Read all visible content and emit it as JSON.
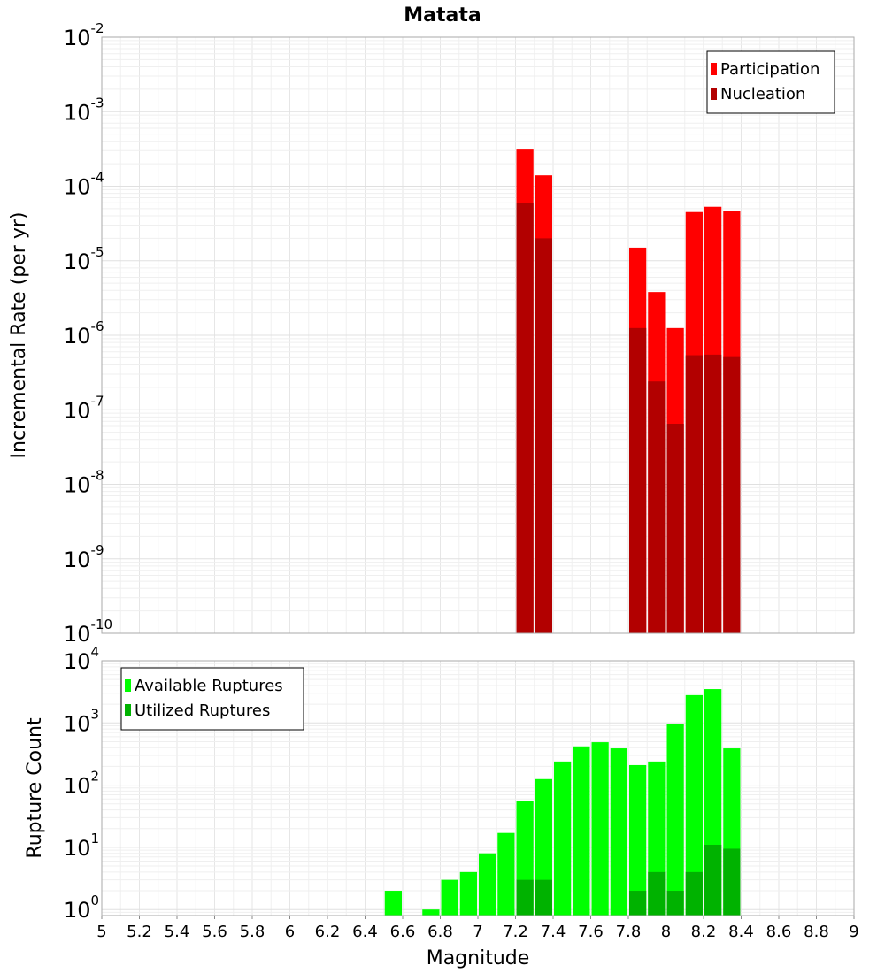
{
  "chart_data": [
    {
      "type": "bar",
      "title": "Matata",
      "xlabel": "",
      "ylabel": "Incremental Rate (per yr)",
      "yscale": "log",
      "ylim": [
        1e-10,
        0.01
      ],
      "xlim": [
        5,
        9
      ],
      "bar_width": 0.1,
      "y_ticks": [
        {
          "base": "10",
          "exp": "-10"
        },
        {
          "base": "10",
          "exp": "-9"
        },
        {
          "base": "10",
          "exp": "-8"
        },
        {
          "base": "10",
          "exp": "-7"
        },
        {
          "base": "10",
          "exp": "-6"
        },
        {
          "base": "10",
          "exp": "-5"
        },
        {
          "base": "10",
          "exp": "-4"
        },
        {
          "base": "10",
          "exp": "-3"
        },
        {
          "base": "10",
          "exp": "-2"
        }
      ],
      "legend_position": "top-right",
      "series": [
        {
          "name": "Participation",
          "color": "#ff0000",
          "x": [
            7.25,
            7.35,
            7.85,
            7.95,
            8.05,
            8.15,
            8.25,
            8.35
          ],
          "values": [
            0.00031,
            0.00014,
            1.5e-05,
            3.8e-06,
            1.25e-06,
            4.5e-05,
            5.3e-05,
            4.6e-05
          ]
        },
        {
          "name": "Nucleation",
          "color": "#b20000",
          "x": [
            7.25,
            7.35,
            7.85,
            7.95,
            8.05,
            8.15,
            8.25,
            8.35
          ],
          "values": [
            5.9e-05,
            2e-05,
            1.25e-06,
            2.4e-07,
            6.5e-08,
            5.4e-07,
            5.5e-07,
            5.1e-07
          ]
        }
      ]
    },
    {
      "type": "bar",
      "title": "",
      "xlabel": "Magnitude",
      "ylabel": "Rupture Count",
      "yscale": "log",
      "ylim": [
        0.8,
        10000
      ],
      "xlim": [
        5,
        9
      ],
      "bar_width": 0.1,
      "x_ticks": [
        "5",
        "5.2",
        "5.4",
        "5.6",
        "5.8",
        "6",
        "6.2",
        "6.4",
        "6.6",
        "6.8",
        "7",
        "7.2",
        "7.4",
        "7.6",
        "7.8",
        "8",
        "8.2",
        "8.4",
        "8.6",
        "8.8",
        "9"
      ],
      "y_ticks": [
        {
          "base": "10",
          "exp": "0"
        },
        {
          "base": "10",
          "exp": "1"
        },
        {
          "base": "10",
          "exp": "2"
        },
        {
          "base": "10",
          "exp": "3"
        },
        {
          "base": "10",
          "exp": "4"
        }
      ],
      "legend_position": "top-left",
      "series": [
        {
          "name": "Available Ruptures",
          "color": "#00ff00",
          "x": [
            6.55,
            6.75,
            6.85,
            6.95,
            7.05,
            7.15,
            7.25,
            7.35,
            7.45,
            7.55,
            7.65,
            7.75,
            7.85,
            7.95,
            8.05,
            8.15,
            8.25,
            8.35
          ],
          "values": [
            2,
            1,
            3,
            4,
            8,
            17,
            55,
            125,
            240,
            420,
            490,
            390,
            210,
            240,
            950,
            2800,
            3500,
            390
          ]
        },
        {
          "name": "Utilized Ruptures",
          "color": "#00b200",
          "x": [
            7.25,
            7.35,
            7.85,
            7.95,
            8.05,
            8.15,
            8.25,
            8.35
          ],
          "values": [
            3,
            3,
            2,
            4,
            2,
            4,
            11,
            9.5
          ]
        }
      ]
    }
  ]
}
